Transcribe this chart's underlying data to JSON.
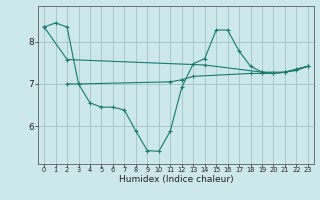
{
  "x": [
    0,
    1,
    2,
    3,
    4,
    5,
    6,
    7,
    8,
    9,
    10,
    11,
    12,
    13,
    14,
    15,
    16,
    17,
    18,
    19,
    20,
    21,
    22,
    23
  ],
  "line1": [
    8.35,
    8.45,
    8.35,
    7.0,
    6.55,
    6.45,
    6.45,
    6.38,
    5.88,
    5.42,
    5.4,
    5.88,
    6.92,
    7.48,
    7.6,
    8.28,
    8.28,
    7.78,
    7.42,
    7.28,
    7.25,
    7.28,
    7.35,
    7.42
  ],
  "line2_x": [
    0,
    2,
    14,
    19,
    21,
    23
  ],
  "line2_y": [
    8.35,
    7.58,
    7.45,
    7.28,
    7.28,
    7.42
  ],
  "line3_x": [
    2,
    3,
    11,
    12,
    13,
    18,
    19,
    20,
    21,
    22,
    23
  ],
  "line3_y": [
    7.0,
    7.0,
    7.05,
    7.1,
    7.18,
    7.25,
    7.25,
    7.25,
    7.28,
    7.32,
    7.42
  ],
  "bg_color": "#cce8ea",
  "line_color": "#1a7a6e",
  "grid_color": "#9bbcbe",
  "xlabel": "Humidex (Indice chaleur)",
  "ylabel_ticks": [
    6,
    7,
    8
  ],
  "xlim": [
    -0.5,
    23.5
  ],
  "ylim": [
    5.1,
    8.85
  ]
}
